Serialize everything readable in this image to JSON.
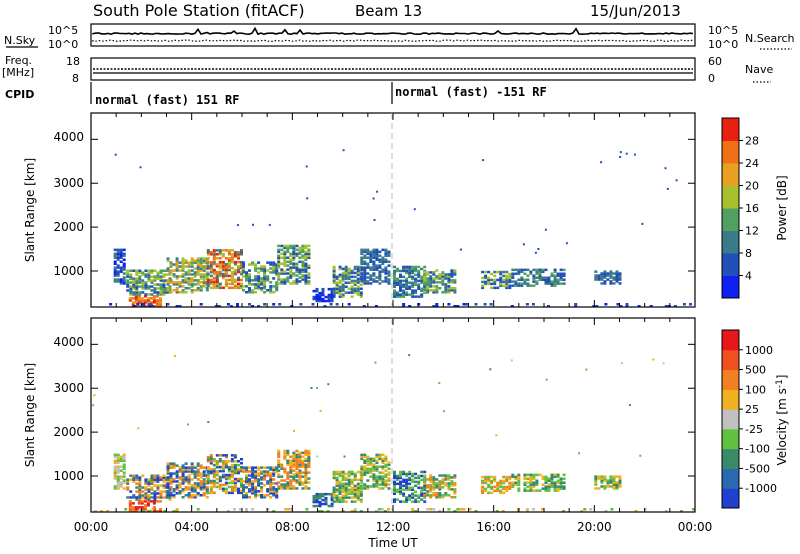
{
  "header": {
    "station": "South Pole Station (fitACF)",
    "beam": "Beam 13",
    "date": "15/Jun/2013"
  },
  "noise_panel": {
    "left_label": "N.Sky",
    "left_top_tick": "10^5",
    "left_bottom_tick": "10^0",
    "right_label": "N.Search",
    "right_top_tick": "10^5",
    "right_bottom_tick": "10^0"
  },
  "freq_panel": {
    "left_label_line1": "Freq.",
    "left_label_line2": "[MHz]",
    "left_top_tick": "18",
    "left_bottom_tick": "8",
    "right_label": "Nave",
    "right_top_tick": "60",
    "right_bottom_tick": "0"
  },
  "cpid_panel": {
    "label": "CPID",
    "segments": [
      {
        "text": "normal (fast) 151 RF",
        "start_hour": 0
      },
      {
        "text": "normal (fast) -151 RF",
        "start_hour": 12
      }
    ]
  },
  "chart_data": [
    {
      "type": "heatmap",
      "name": "power",
      "ylabel": "Slant Range [km]",
      "y_ticks": [
        "1000",
        "2000",
        "3000",
        "4000"
      ],
      "ylim": [
        180,
        4600
      ],
      "colorbar": {
        "label": "Power [dB]",
        "tick_labels": [
          "4",
          "8",
          "12",
          "16",
          "20",
          "24",
          "28"
        ],
        "colors": [
          "#1020f0",
          "#2050b8",
          "#3a7a8a",
          "#50a060",
          "#a8c030",
          "#e8a020",
          "#f07018",
          "#e82010"
        ]
      }
    },
    {
      "type": "heatmap",
      "name": "velocity",
      "ylabel": "Slant Range [km]",
      "y_ticks": [
        "1000",
        "2000",
        "3000",
        "4000"
      ],
      "ylim": [
        180,
        4600
      ],
      "colorbar": {
        "label": "Velocity [m s^-1]",
        "tick_labels": [
          "1000",
          "500",
          "100",
          "25",
          "-25",
          "-100",
          "-500",
          "-1000"
        ],
        "colors": [
          "#2040d0",
          "#2a6ab0",
          "#3a8a6a",
          "#60c040",
          "#c0c0c0",
          "#f0b020",
          "#f08020",
          "#f05020",
          "#e81818"
        ]
      }
    }
  ],
  "x_axis": {
    "label": "Time UT",
    "ticks": [
      "00:00",
      "04:00",
      "08:00",
      "12:00",
      "16:00",
      "20:00",
      "00:00"
    ]
  }
}
